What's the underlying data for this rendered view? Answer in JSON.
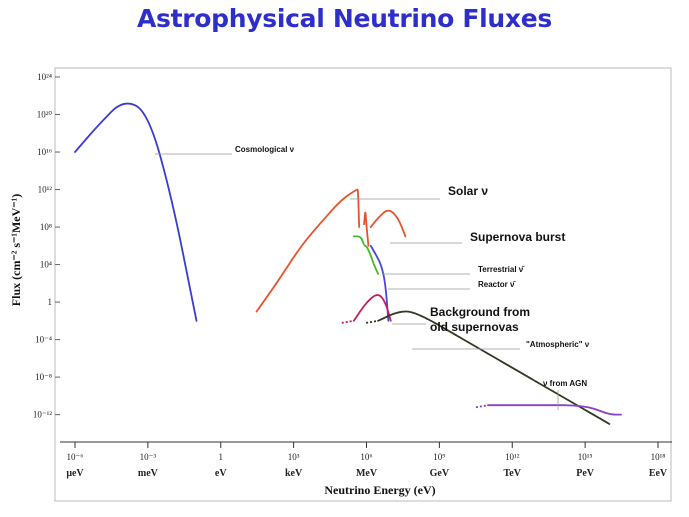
{
  "title": "Astrophysical Neutrino Fluxes",
  "chart_data": {
    "type": "line",
    "title": "Astrophysical Neutrino Fluxes",
    "xlabel": "Neutrino Energy (eV)",
    "ylabel": "Flux (cm⁻² s⁻¹MeV⁻¹)",
    "x_scale": "log",
    "y_scale": "log",
    "xlim": [
      1e-06,
      1e+18
    ],
    "ylim": [
      1e-13,
      1e+24
    ],
    "grid": false,
    "x_ticks": [
      {
        "value": 1e-06,
        "label": "10⁻⁶",
        "unit": "μeV"
      },
      {
        "value": 0.001,
        "label": "10⁻³",
        "unit": "meV"
      },
      {
        "value": 1,
        "label": "1",
        "unit": "eV"
      },
      {
        "value": 1000.0,
        "label": "10³",
        "unit": "keV"
      },
      {
        "value": 1000000.0,
        "label": "10⁶",
        "unit": "MeV"
      },
      {
        "value": 1000000000.0,
        "label": "10⁹",
        "unit": "GeV"
      },
      {
        "value": 1000000000000.0,
        "label": "10¹²",
        "unit": "TeV"
      },
      {
        "value": 1000000000000000.0,
        "label": "10¹⁵",
        "unit": "PeV"
      },
      {
        "value": 1e+18,
        "label": "10¹⁸",
        "unit": "EeV"
      }
    ],
    "y_ticks": [
      {
        "value": 1e+24,
        "label": "10²⁴"
      },
      {
        "value": 1e+20,
        "label": "10²⁰"
      },
      {
        "value": 1e+16,
        "label": "10¹⁶"
      },
      {
        "value": 1000000000000.0,
        "label": "10¹²"
      },
      {
        "value": 100000000.0,
        "label": "10⁸"
      },
      {
        "value": 10000.0,
        "label": "10⁴"
      },
      {
        "value": 1,
        "label": "1"
      },
      {
        "value": 0.0001,
        "label": "10⁻⁴"
      },
      {
        "value": 1e-08,
        "label": "10⁻⁸"
      },
      {
        "value": 1e-12,
        "label": "10⁻¹²"
      }
    ],
    "series": [
      {
        "name": "Cosmological ν",
        "color": "#3a3ad6",
        "style": "solid",
        "points": [
          [
            1e-06,
            1e+16
          ],
          [
            1e-05,
            1e+19
          ],
          [
            0.0001,
            4e+21
          ],
          [
            0.001,
            2e+20
          ],
          [
            0.01,
            100000000000.0
          ],
          [
            0.1,
            0.01
          ]
        ]
      },
      {
        "name": "Solar ν",
        "color": "#e8522a",
        "style": "solid",
        "points": [
          [
            30.0,
            0.1
          ],
          [
            200.0,
            100.0
          ],
          [
            2000.0,
            1000000.0
          ],
          [
            20000.0,
            1000000000.0
          ],
          [
            100000.0,
            100000000000.0
          ],
          [
            400000.0,
            1000000000000.0
          ],
          [
            450000.0,
            1000000000000.0
          ],
          [
            500000.0,
            100000000.0
          ]
        ]
      },
      {
        "name": "Solar ν lines",
        "color": "#e8522a",
        "style": "solid",
        "points": [
          [
            800000.0,
            200000000.0
          ],
          [
            900000.0,
            10000000000.0
          ],
          [
            1000000.0,
            100000000.0
          ],
          [
            1200000.0,
            1000000.0
          ]
        ]
      },
      {
        "name": "Supernova burst",
        "color": "#e8522a",
        "style": "solid",
        "points": [
          [
            1500000.0,
            100000000.0
          ],
          [
            3000000.0,
            1000000000.0
          ],
          [
            8000000.0,
            10000000000.0
          ],
          [
            20000000.0,
            1000000000.0
          ],
          [
            40000000.0,
            10000000.0
          ]
        ]
      },
      {
        "name": "Terrestrial ν̄",
        "color": "#44bb22",
        "style": "solid",
        "points": [
          [
            300000.0,
            10000000.0
          ],
          [
            600000.0,
            10000000.0
          ],
          [
            800000.0,
            1000000.0
          ],
          [
            1000000.0,
            1000000.0
          ],
          [
            1500000.0,
            100000.0
          ],
          [
            2000000.0,
            10000.0
          ],
          [
            3000000.0,
            1000.0
          ]
        ]
      },
      {
        "name": "Reactor ν̄",
        "color": "#4646dd",
        "style": "solid",
        "points": [
          [
            1500000.0,
            1000000.0
          ],
          [
            2500000.0,
            100000.0
          ],
          [
            4000000.0,
            10000.0
          ],
          [
            6000000.0,
            100.0
          ],
          [
            8000000.0,
            0.01
          ]
        ]
      },
      {
        "name": "Background from old supernovas",
        "color": "#c2205a",
        "style": "mixed",
        "points": [
          [
            300000.0,
            0.01
          ],
          [
            1000000.0,
            1.0
          ],
          [
            3000000.0,
            10.0
          ],
          [
            6000000.0,
            1.0
          ],
          [
            10000000.0,
            0.01
          ]
        ]
      },
      {
        "name": "\"Atmospheric\" ν",
        "color": "#303a20",
        "style": "mixed",
        "points": [
          [
            3000000.0,
            0.01
          ],
          [
            20000000.0,
            0.1
          ],
          [
            100000000.0,
            0.1
          ],
          [
            10000000000.0,
            0.0001
          ],
          [
            1000000000000.0,
            1e-07
          ],
          [
            100000000000000.0,
            1e-10
          ],
          [
            1e+16,
            1e-13
          ]
        ]
      },
      {
        "name": "ν from AGN",
        "color": "#8a3fc8",
        "style": "mixed",
        "points": [
          [
            100000000000.0,
            1e-11
          ],
          [
            10000000000000.0,
            1e-11
          ],
          [
            1000000000000000.0,
            1e-11
          ],
          [
            1e+16,
            1e-12
          ],
          [
            3e+16,
            1e-12
          ]
        ]
      }
    ],
    "annotations": [
      {
        "text": "Cosmological ν",
        "size": "small"
      },
      {
        "text": "Solar ν",
        "size": "big"
      },
      {
        "text": "Supernova burst",
        "size": "big"
      },
      {
        "text": "Terrestrial ν̄",
        "size": "small"
      },
      {
        "text": "Reactor ν̄",
        "size": "small"
      },
      {
        "text": "Background from",
        "size": "big"
      },
      {
        "text": "old supernovas",
        "size": "big"
      },
      {
        "text": "\"Atmospheric\" ν",
        "size": "small"
      },
      {
        "text": "ν from AGN",
        "size": "small"
      }
    ]
  }
}
